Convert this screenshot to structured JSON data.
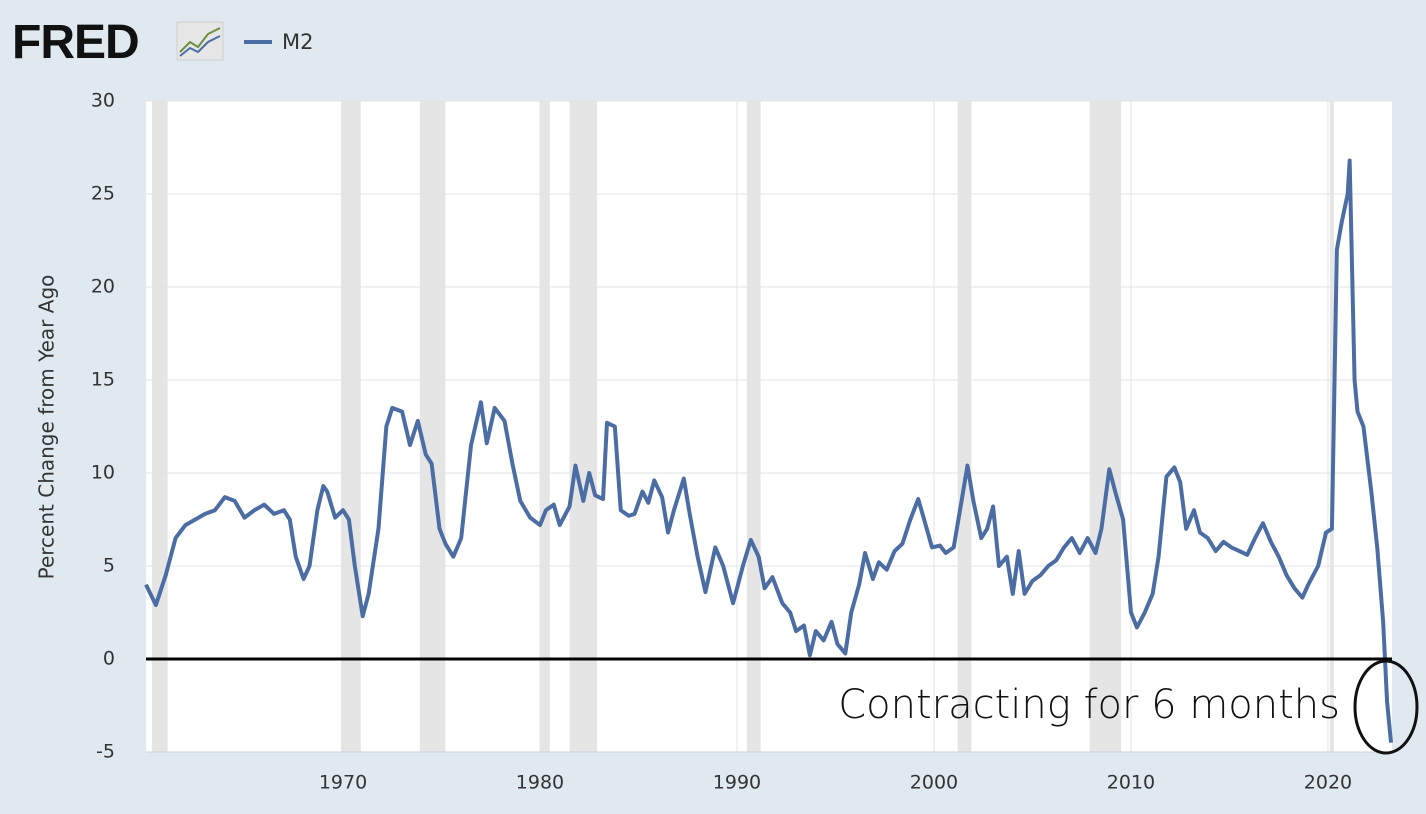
{
  "chart_data": {
    "type": "line",
    "logo": "FRED",
    "y_label": "Percent Change from Year Ago",
    "annotation": "Contracting for 6 months",
    "reference_line": 0,
    "grid": true,
    "xlim": [
      1960,
      2023.25
    ],
    "xticks": [
      1970,
      1980,
      1990,
      2000,
      2010,
      2020
    ],
    "ylim": [
      -5,
      30
    ],
    "yticks": [
      30,
      25,
      20,
      15,
      10,
      5,
      0,
      -5
    ],
    "recessions": [
      [
        1960.3,
        1961.1
      ],
      [
        1969.9,
        1970.9
      ],
      [
        1973.9,
        1975.2
      ],
      [
        1980.0,
        1980.5
      ],
      [
        1981.5,
        1982.9
      ],
      [
        1990.5,
        1991.2
      ],
      [
        2001.2,
        2001.9
      ],
      [
        2007.9,
        2009.5
      ],
      [
        2020.1,
        2020.3
      ]
    ],
    "x": [
      1960.0,
      1960.5,
      1961.0,
      1961.5,
      1962.0,
      1962.5,
      1963.0,
      1963.5,
      1964.0,
      1964.5,
      1965.0,
      1965.5,
      1966.0,
      1966.5,
      1967.0,
      1967.3,
      1967.6,
      1968.0,
      1968.3,
      1968.7,
      1969.0,
      1969.2,
      1969.6,
      1970.0,
      1970.3,
      1970.6,
      1971.0,
      1971.3,
      1971.8,
      1972.2,
      1972.5,
      1973.0,
      1973.4,
      1973.8,
      1974.2,
      1974.5,
      1974.9,
      1975.2,
      1975.6,
      1976.0,
      1976.5,
      1977.0,
      1977.3,
      1977.7,
      1978.2,
      1978.6,
      1979.0,
      1979.5,
      1980.0,
      1980.3,
      1980.7,
      1981.0,
      1981.5,
      1981.8,
      1982.2,
      1982.5,
      1982.8,
      1983.2,
      1983.4,
      1983.8,
      1984.1,
      1984.5,
      1984.8,
      1985.2,
      1985.5,
      1985.8,
      1986.2,
      1986.5,
      1986.8,
      1987.3,
      1987.6,
      1988.0,
      1988.4,
      1988.9,
      1989.3,
      1989.8,
      1990.3,
      1990.7,
      1991.1,
      1991.4,
      1991.8,
      1992.3,
      1992.7,
      1993.0,
      1993.4,
      1993.7,
      1994.0,
      1994.4,
      1994.8,
      1995.1,
      1995.5,
      1995.8,
      1996.2,
      1996.5,
      1996.9,
      1997.2,
      1997.6,
      1998.0,
      1998.4,
      1998.8,
      1999.2,
      1999.5,
      1999.9,
      2000.3,
      2000.6,
      2001.0,
      2001.4,
      2001.7,
      2002.0,
      2002.4,
      2002.7,
      2003.0,
      2003.3,
      2003.7,
      2004.0,
      2004.3,
      2004.6,
      2005.0,
      2005.4,
      2005.8,
      2006.2,
      2006.6,
      2007.0,
      2007.4,
      2007.8,
      2008.2,
      2008.5,
      2008.9,
      2009.2,
      2009.6,
      2010.0,
      2010.3,
      2010.7,
      2011.1,
      2011.4,
      2011.8,
      2012.2,
      2012.5,
      2012.8,
      2013.2,
      2013.5,
      2013.9,
      2014.3,
      2014.7,
      2015.1,
      2015.5,
      2015.9,
      2016.3,
      2016.7,
      2017.1,
      2017.5,
      2017.9,
      2018.3,
      2018.7,
      2019.0,
      2019.5,
      2019.9,
      2020.2,
      2020.45,
      2020.7,
      2021.0,
      2021.1,
      2021.35,
      2021.5,
      2021.8,
      2022.2,
      2022.5,
      2022.8,
      2023.0,
      2023.2
    ],
    "series": [
      {
        "name": "M2",
        "color": "#4c6da4",
        "values": [
          4.0,
          2.9,
          4.5,
          6.5,
          7.2,
          7.5,
          7.8,
          8.0,
          8.7,
          8.5,
          7.6,
          8.0,
          8.3,
          7.8,
          8.0,
          7.5,
          5.5,
          4.3,
          5.0,
          8.0,
          9.3,
          9.0,
          7.6,
          8.0,
          7.5,
          5.0,
          2.3,
          3.5,
          7.0,
          12.5,
          13.5,
          13.3,
          11.5,
          12.8,
          11.0,
          10.5,
          7.0,
          6.2,
          5.5,
          6.5,
          11.5,
          13.8,
          11.6,
          13.5,
          12.8,
          10.5,
          8.5,
          7.6,
          7.2,
          8.0,
          8.3,
          7.2,
          8.2,
          10.4,
          8.5,
          10.0,
          8.8,
          8.6,
          12.7,
          12.5,
          8.0,
          7.7,
          7.8,
          9.0,
          8.4,
          9.6,
          8.7,
          6.8,
          8.0,
          9.7,
          7.8,
          5.5,
          3.6,
          6.0,
          5.0,
          3.0,
          5.0,
          6.4,
          5.5,
          3.8,
          4.4,
          3.0,
          2.5,
          1.5,
          1.8,
          0.2,
          1.5,
          1.0,
          2.0,
          0.8,
          0.3,
          2.5,
          4.0,
          5.7,
          4.3,
          5.2,
          4.8,
          5.8,
          6.2,
          7.5,
          8.6,
          7.5,
          6.0,
          6.1,
          5.7,
          6.0,
          8.5,
          10.4,
          8.5,
          6.5,
          7.0,
          8.2,
          5.0,
          5.5,
          3.5,
          5.8,
          3.5,
          4.2,
          4.5,
          5.0,
          5.3,
          6.0,
          6.5,
          5.7,
          6.5,
          5.7,
          7.0,
          10.2,
          9.0,
          7.5,
          2.5,
          1.7,
          2.5,
          3.5,
          5.5,
          9.8,
          10.3,
          9.5,
          7.0,
          8.0,
          6.8,
          6.5,
          5.8,
          6.3,
          6.0,
          5.8,
          5.6,
          6.5,
          7.3,
          6.3,
          5.5,
          4.5,
          3.8,
          3.3,
          4.0,
          5.0,
          6.8,
          7.0,
          22.0,
          23.5,
          25.0,
          26.8,
          15.0,
          13.3,
          12.5,
          9.0,
          6.0,
          2.0,
          -2.3,
          -4.5
        ]
      }
    ]
  }
}
